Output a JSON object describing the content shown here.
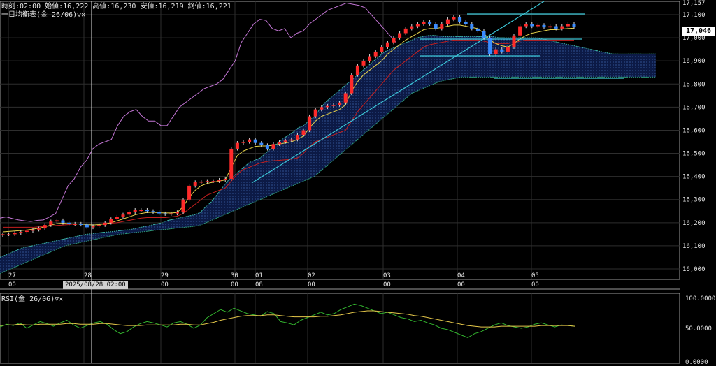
{
  "header": {
    "ohlc_text": "時刻:02:00 始値:16,222 高値:16,230 安値:16,219 終値:16,221",
    "indicator_label": "一目均衡表(金 26/06)▽✕"
  },
  "rsi_header": "RSI(金 26/06)▽✕",
  "current_price_label": "17,046",
  "crosshair_datetime": "2025/08/28 02:00",
  "colors": {
    "background": "#000000",
    "grid": "#2e2e2e",
    "candle_up": "#ff2a2a",
    "candle_down": "#3a8cff",
    "chikou": "#c476d6",
    "tenkan": "#e6d24a",
    "kijun": "#c41f1f",
    "span": "#3cb6a8",
    "cloud": "#0c1a46",
    "trendline": "#3cc8d8",
    "rsi": "#33b62f",
    "rsi_signal": "#e6c84a"
  },
  "chart_data": [
    {
      "type": "candlestick",
      "title": "",
      "y_axis": {
        "ylim": [
          15950,
          17157
        ],
        "ticks": [
          "17,157",
          "17,100",
          "17,000",
          "16,900",
          "16,800",
          "16,700",
          "16,600",
          "16,500",
          "16,400",
          "16,300",
          "16,200",
          "16,100",
          "16,000"
        ]
      },
      "x_axis": {
        "date_labels": [
          "27",
          "28",
          "29",
          "30",
          "01",
          "02",
          "03",
          "04",
          "05"
        ],
        "hour_labels": [
          "00",
          "00",
          "00",
          "08",
          "00",
          "00",
          "00"
        ]
      },
      "grid": true,
      "series": [
        {
          "name": "price",
          "values": [
            16150,
            16150,
            16155,
            16160,
            16165,
            16170,
            16175,
            16190,
            16205,
            16210,
            16200,
            16195,
            16195,
            16192,
            16180,
            16185,
            16190,
            16200,
            16215,
            16225,
            16235,
            16245,
            16255,
            16255,
            16250,
            16245,
            16240,
            16238,
            16240,
            16245,
            16300,
            16360,
            16375,
            16378,
            16380,
            16380,
            16385,
            16390,
            16520,
            16545,
            16550,
            16560,
            16545,
            16535,
            16520,
            16540,
            16550,
            16555,
            16560,
            16580,
            16600,
            16660,
            16690,
            16700,
            16705,
            16710,
            16720,
            16760,
            16840,
            16880,
            16900,
            16920,
            16940,
            16960,
            16980,
            17000,
            17020,
            17040,
            17050,
            17060,
            17070,
            17060,
            17040,
            17060,
            17080,
            17090,
            17070,
            17060,
            17040,
            17030,
            17000,
            16930,
            16950,
            16940,
            16960,
            17010,
            17050,
            17060,
            17050,
            17055,
            17045,
            17050,
            17040,
            17050,
            17060,
            17046
          ]
        },
        {
          "name": "tenkan",
          "values": [
            16160,
            16162,
            16164,
            16166,
            16168,
            16172,
            16176,
            16182,
            16190,
            16196,
            16198,
            16196,
            16195,
            16194,
            16192,
            16190,
            16192,
            16195,
            16200,
            16208,
            16216,
            16225,
            16234,
            16240,
            16244,
            16245,
            16243,
            16242,
            16242,
            16244,
            16270,
            16310,
            16340,
            16360,
            16370,
            16375,
            16380,
            16385,
            16440,
            16490,
            16510,
            16520,
            16530,
            16532,
            16532,
            16535,
            16540,
            16545,
            16550,
            16560,
            16575,
            16610,
            16640,
            16660,
            16670,
            16680,
            16690,
            16710,
            16770,
            16810,
            16840,
            16860,
            16880,
            16900,
            16930,
            16950,
            16970,
            16990,
            17005,
            17020,
            17035,
            17040,
            17040,
            17045,
            17050,
            17055,
            17055,
            17050,
            17045,
            17040,
            17020,
            16990,
            16975,
            16965,
            16960,
            16975,
            16995,
            17010,
            17020,
            17025,
            17030,
            17035,
            17035,
            17038,
            17040,
            17042
          ]
        },
        {
          "name": "kijun",
          "values": [
            16180,
            16180,
            16180,
            16180,
            16180,
            16180,
            16182,
            16184,
            16186,
            16188,
            16190,
            16192,
            16195,
            16195,
            16195,
            16195,
            16195,
            16196,
            16198,
            16200,
            16205,
            16210,
            16215,
            16220,
            16222,
            16222,
            16222,
            16222,
            16225,
            16228,
            16240,
            16260,
            16280,
            16300,
            16320,
            16330,
            16340,
            16350,
            16380,
            16410,
            16430,
            16440,
            16450,
            16460,
            16465,
            16468,
            16470,
            16472,
            16475,
            16480,
            16500,
            16530,
            16550,
            16560,
            16570,
            16580,
            16590,
            16600,
            16640,
            16680,
            16710,
            16740,
            16770,
            16800,
            16830,
            16860,
            16880,
            16900,
            16920,
            16940,
            16960,
            16970,
            16975,
            16980,
            16985,
            16990,
            16990,
            16990,
            16990,
            16990,
            16985,
            16980,
            16975,
            16975,
            16975,
            16980,
            16985,
            16990,
            16990,
            16990,
            16990,
            16990,
            16990,
            16990,
            16990,
            16990
          ]
        },
        {
          "name": "chikou",
          "values": [
            16220,
            16225,
            16218,
            16212,
            16208,
            16205,
            16210,
            16212,
            16225,
            16240,
            16300,
            16360,
            16390,
            16440,
            16470,
            16520,
            16540,
            16550,
            16560,
            16620,
            16660,
            16680,
            16690,
            16660,
            16640,
            16640,
            16620,
            16620,
            16660,
            16700,
            16720,
            16740,
            16760,
            16780,
            16790,
            16800,
            16820,
            16860,
            16900,
            16980,
            17020,
            17060,
            17080,
            17075,
            17040,
            17030,
            17040,
            17000,
            17020,
            17030,
            17060,
            17080,
            17100,
            17120,
            17130,
            17140,
            17150,
            17145,
            17140,
            17130,
            17100,
            17070,
            17040,
            17010,
            16980
          ]
        },
        {
          "name": "span_a",
          "values": [
            16050,
            16060,
            16070,
            16080,
            16090,
            16095,
            16100,
            16105,
            16110,
            16115,
            16120,
            16125,
            16130,
            16135,
            16140,
            16145,
            16150,
            16152,
            16155,
            16158,
            16160,
            16162,
            16165,
            16168,
            16170,
            16175,
            16180,
            16185,
            16190,
            16195,
            16200,
            16210,
            16215,
            16220,
            16225,
            16230,
            16235,
            16245,
            16270,
            16290,
            16320,
            16350,
            16380,
            16400,
            16420,
            16440,
            16460,
            16470,
            16480,
            16500,
            16520,
            16540,
            16560,
            16575,
            16590,
            16610,
            16620,
            16640,
            16660,
            16690,
            16720,
            16740,
            16760,
            16780,
            16800,
            16820,
            16840,
            16860,
            16880,
            16900,
            16920,
            16940,
            16950,
            16960,
            16970,
            16980,
            16990,
            17000,
            17005,
            17010,
            17010,
            17008,
            17005,
            17005,
            17005,
            17005,
            17005,
            17005,
            17005,
            17005,
            17005,
            17005,
            17000,
            17000,
            17000,
            17000,
            17000,
            17000,
            17000,
            17000,
            16995,
            16990,
            16985,
            16980,
            16975,
            16970,
            16965,
            16960,
            16955,
            16950,
            16945,
            16940,
            16935,
            16930,
            16930,
            16930,
            16930,
            16930,
            16930,
            16930,
            16930,
            16930
          ]
        },
        {
          "name": "span_b",
          "values": [
            15980,
            15990,
            16000,
            16010,
            16020,
            16030,
            16040,
            16050,
            16060,
            16070,
            16080,
            16090,
            16100,
            16105,
            16110,
            16115,
            16120,
            16125,
            16130,
            16135,
            16140,
            16145,
            16150,
            16152,
            16155,
            16158,
            16160,
            16162,
            16165,
            16168,
            16170,
            16172,
            16175,
            16178,
            16180,
            16182,
            16185,
            16190,
            16200,
            16210,
            16220,
            16230,
            16240,
            16250,
            16260,
            16270,
            16280,
            16290,
            16300,
            16310,
            16320,
            16330,
            16340,
            16350,
            16360,
            16370,
            16380,
            16390,
            16400,
            16420,
            16440,
            16460,
            16480,
            16500,
            16520,
            16540,
            16560,
            16580,
            16600,
            16620,
            16640,
            16660,
            16680,
            16700,
            16720,
            16740,
            16760,
            16770,
            16780,
            16790,
            16800,
            16810,
            16815,
            16820,
            16825,
            16830,
            16830,
            16830,
            16830,
            16830,
            16830,
            16830,
            16830,
            16830,
            16830,
            16830,
            16830,
            16830,
            16830,
            16830,
            16830,
            16830,
            16830,
            16830,
            16830,
            16830,
            16830,
            16830,
            16830,
            16830,
            16830,
            16830,
            16830,
            16830,
            16830,
            16830,
            16830,
            16830,
            16830,
            16830,
            16830,
            16830
          ]
        }
      ]
    },
    {
      "type": "line",
      "title": "",
      "y_axis": {
        "ylim": [
          0,
          100
        ],
        "ticks": [
          "100.0000",
          "50.0000",
          "0.0000"
        ]
      },
      "series": [
        {
          "name": "rsi",
          "values": [
            52,
            56,
            54,
            58,
            50,
            55,
            60,
            57,
            53,
            58,
            62,
            55,
            50,
            54,
            58,
            60,
            56,
            48,
            42,
            45,
            52,
            57,
            60,
            58,
            55,
            52,
            58,
            60,
            56,
            50,
            55,
            66,
            72,
            78,
            74,
            80,
            76,
            72,
            70,
            68,
            75,
            72,
            60,
            58,
            55,
            62,
            66,
            70,
            74,
            70,
            72,
            78,
            82,
            86,
            84,
            80,
            76,
            72,
            74,
            70,
            66,
            64,
            60,
            62,
            58,
            55,
            50,
            48,
            44,
            40,
            36,
            42,
            45,
            50,
            55,
            58,
            54,
            52,
            50,
            52,
            56,
            58,
            55,
            52,
            55,
            54,
            53
          ]
        },
        {
          "name": "rsi_signal",
          "values": [
            54,
            55,
            55,
            56,
            55,
            55,
            56,
            56,
            56,
            56,
            57,
            57,
            56,
            56,
            56,
            57,
            57,
            56,
            55,
            54,
            54,
            54,
            55,
            55,
            55,
            55,
            55,
            56,
            56,
            55,
            55,
            57,
            59,
            62,
            64,
            66,
            68,
            69,
            69,
            69,
            70,
            70,
            69,
            68,
            67,
            67,
            67,
            67,
            68,
            68,
            69,
            70,
            72,
            74,
            75,
            76,
            76,
            75,
            74,
            73,
            72,
            71,
            69,
            68,
            66,
            64,
            62,
            60,
            58,
            56,
            54,
            53,
            52,
            52,
            52,
            53,
            53,
            53,
            53,
            53,
            53,
            54,
            54,
            54,
            54,
            54,
            53
          ]
        }
      ]
    }
  ]
}
